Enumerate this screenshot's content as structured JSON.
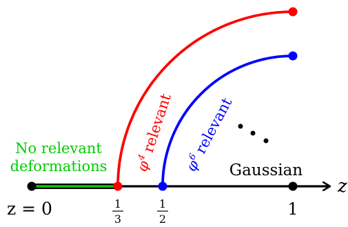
{
  "axis": {
    "variable": "z",
    "origin_label": "z = 0",
    "end_label": "1"
  },
  "fractions": {
    "third": {
      "num": "1",
      "den": "3"
    },
    "half": {
      "num": "1",
      "den": "2"
    }
  },
  "regions": {
    "green_line_label": [
      "No relevant",
      "deformations"
    ],
    "gaussian_label": "Gaussian"
  },
  "curves": {
    "phi4": {
      "sym": "φ",
      "sup": "4",
      "word": "relevant",
      "color": "#ff0000"
    },
    "phi6": {
      "sym": "φ",
      "sup": "6",
      "word": "relevant",
      "color": "#0000ff"
    }
  },
  "colors": {
    "axis": "#000000",
    "green": "#00cc00",
    "green_label": "#00cc00",
    "phi4": "#ff0000",
    "phi6": "#0000ff"
  },
  "ellipsis_dots": 3
}
